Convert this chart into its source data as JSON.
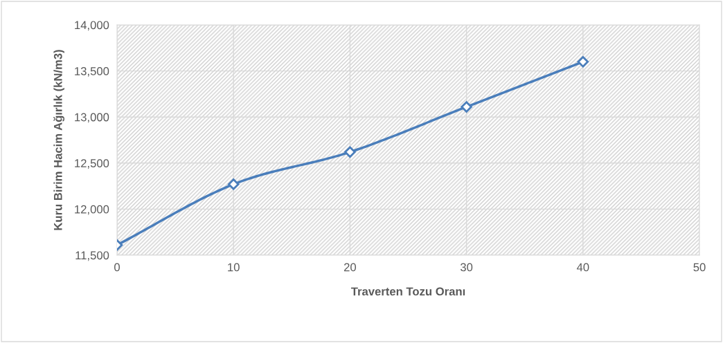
{
  "chart_data": {
    "type": "line",
    "xlabel": "Traverten Tozu Oranı",
    "ylabel": "Kuru Birim Hacim Ağırlık (kN/m3)",
    "x": [
      0,
      10,
      20,
      30,
      40
    ],
    "series": [
      {
        "color": "#4a7ebb",
        "values": [
          11610,
          12270,
          12620,
          13110,
          13600
        ]
      }
    ],
    "xlim": [
      0,
      50
    ],
    "xticks": [
      0,
      10,
      20,
      30,
      40,
      50
    ],
    "ylim": [
      11500,
      14000
    ],
    "yticks": [
      {
        "value": 11500,
        "label": "11,500"
      },
      {
        "value": 12000,
        "label": "12,000"
      },
      {
        "value": 12500,
        "label": "12,500"
      },
      {
        "value": 13000,
        "label": "13,000"
      },
      {
        "value": 13500,
        "label": "13,500"
      },
      {
        "value": 14000,
        "label": "14,000"
      }
    ],
    "grid": true,
    "marker": "diamond",
    "line_style": "solid",
    "legend": false
  }
}
